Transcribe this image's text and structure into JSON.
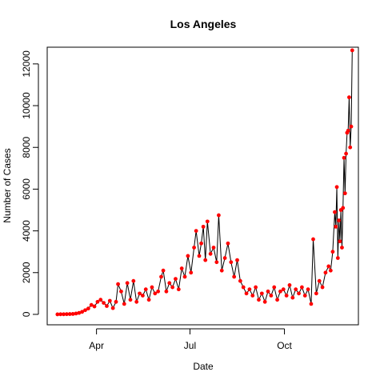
{
  "chart_data": {
    "type": "line",
    "title": "Los Angeles",
    "xlabel": "Date",
    "ylabel": "Number of Cases",
    "x_axis": {
      "type": "date",
      "range": [
        "2020-02-13",
        "2020-12-12"
      ],
      "ticks": [
        {
          "date": "2020-04-01",
          "label": "Apr"
        },
        {
          "date": "2020-07-01",
          "label": "Jul"
        },
        {
          "date": "2020-10-01",
          "label": "Oct"
        }
      ]
    },
    "y_axis": {
      "range": [
        -500,
        12800
      ],
      "ticks": [
        0,
        2000,
        4000,
        6000,
        8000,
        10000,
        12000
      ]
    },
    "grid": false,
    "legend": "none",
    "colors": {
      "line": "#000000",
      "points": "#ff0000"
    },
    "series": [
      {
        "points": [
          [
            "2020-02-23",
            0
          ],
          [
            "2020-02-26",
            5
          ],
          [
            "2020-02-29",
            5
          ],
          [
            "2020-03-03",
            10
          ],
          [
            "2020-03-06",
            15
          ],
          [
            "2020-03-09",
            20
          ],
          [
            "2020-03-12",
            40
          ],
          [
            "2020-03-15",
            70
          ],
          [
            "2020-03-18",
            120
          ],
          [
            "2020-03-21",
            200
          ],
          [
            "2020-03-24",
            280
          ],
          [
            "2020-03-27",
            450
          ],
          [
            "2020-03-30",
            380
          ],
          [
            "2020-04-02",
            600
          ],
          [
            "2020-04-05",
            700
          ],
          [
            "2020-04-08",
            550
          ],
          [
            "2020-04-11",
            400
          ],
          [
            "2020-04-14",
            650
          ],
          [
            "2020-04-17",
            300
          ],
          [
            "2020-04-20",
            600
          ],
          [
            "2020-04-22",
            1450
          ],
          [
            "2020-04-25",
            1100
          ],
          [
            "2020-04-28",
            500
          ],
          [
            "2020-05-01",
            1500
          ],
          [
            "2020-05-04",
            700
          ],
          [
            "2020-05-07",
            1600
          ],
          [
            "2020-05-10",
            600
          ],
          [
            "2020-05-13",
            1000
          ],
          [
            "2020-05-16",
            900
          ],
          [
            "2020-05-19",
            1200
          ],
          [
            "2020-05-22",
            700
          ],
          [
            "2020-05-25",
            1300
          ],
          [
            "2020-05-28",
            1000
          ],
          [
            "2020-05-31",
            1100
          ],
          [
            "2020-06-03",
            1800
          ],
          [
            "2020-06-05",
            2100
          ],
          [
            "2020-06-08",
            1100
          ],
          [
            "2020-06-11",
            1500
          ],
          [
            "2020-06-14",
            1300
          ],
          [
            "2020-06-17",
            1700
          ],
          [
            "2020-06-20",
            1200
          ],
          [
            "2020-06-23",
            2200
          ],
          [
            "2020-06-26",
            1800
          ],
          [
            "2020-06-29",
            2800
          ],
          [
            "2020-07-02",
            2000
          ],
          [
            "2020-07-05",
            3200
          ],
          [
            "2020-07-07",
            4000
          ],
          [
            "2020-07-10",
            2800
          ],
          [
            "2020-07-12",
            3400
          ],
          [
            "2020-07-14",
            4200
          ],
          [
            "2020-07-16",
            2600
          ],
          [
            "2020-07-18",
            4450
          ],
          [
            "2020-07-21",
            2900
          ],
          [
            "2020-07-24",
            3200
          ],
          [
            "2020-07-27",
            2500
          ],
          [
            "2020-07-29",
            4750
          ],
          [
            "2020-08-01",
            2100
          ],
          [
            "2020-08-04",
            2700
          ],
          [
            "2020-08-07",
            3400
          ],
          [
            "2020-08-10",
            2500
          ],
          [
            "2020-08-13",
            1800
          ],
          [
            "2020-08-16",
            2600
          ],
          [
            "2020-08-19",
            1600
          ],
          [
            "2020-08-22",
            1300
          ],
          [
            "2020-08-25",
            1000
          ],
          [
            "2020-08-28",
            1200
          ],
          [
            "2020-08-31",
            900
          ],
          [
            "2020-09-03",
            1300
          ],
          [
            "2020-09-06",
            700
          ],
          [
            "2020-09-09",
            1000
          ],
          [
            "2020-09-12",
            600
          ],
          [
            "2020-09-15",
            1100
          ],
          [
            "2020-09-18",
            900
          ],
          [
            "2020-09-21",
            1300
          ],
          [
            "2020-09-24",
            700
          ],
          [
            "2020-09-27",
            1100
          ],
          [
            "2020-09-30",
            1200
          ],
          [
            "2020-10-03",
            900
          ],
          [
            "2020-10-06",
            1400
          ],
          [
            "2020-10-09",
            800
          ],
          [
            "2020-10-12",
            1200
          ],
          [
            "2020-10-15",
            1000
          ],
          [
            "2020-10-18",
            1300
          ],
          [
            "2020-10-21",
            900
          ],
          [
            "2020-10-24",
            1200
          ],
          [
            "2020-10-27",
            500
          ],
          [
            "2020-10-29",
            3600
          ],
          [
            "2020-11-01",
            1000
          ],
          [
            "2020-11-04",
            1600
          ],
          [
            "2020-11-07",
            1300
          ],
          [
            "2020-11-10",
            2000
          ],
          [
            "2020-11-13",
            2300
          ],
          [
            "2020-11-15",
            2100
          ],
          [
            "2020-11-17",
            3000
          ],
          [
            "2020-11-19",
            4900
          ],
          [
            "2020-11-20",
            4200
          ],
          [
            "2020-11-21",
            6100
          ],
          [
            "2020-11-22",
            2700
          ],
          [
            "2020-11-23",
            4500
          ],
          [
            "2020-11-24",
            3500
          ],
          [
            "2020-11-25",
            5000
          ],
          [
            "2020-11-26",
            3200
          ],
          [
            "2020-11-27",
            5100
          ],
          [
            "2020-11-28",
            7500
          ],
          [
            "2020-11-29",
            5800
          ],
          [
            "2020-11-30",
            7700
          ],
          [
            "2020-12-01",
            8700
          ],
          [
            "2020-12-02",
            8800
          ],
          [
            "2020-12-03",
            10400
          ],
          [
            "2020-12-04",
            8000
          ],
          [
            "2020-12-05",
            9000
          ],
          [
            "2020-12-06",
            12650
          ]
        ]
      }
    ]
  }
}
